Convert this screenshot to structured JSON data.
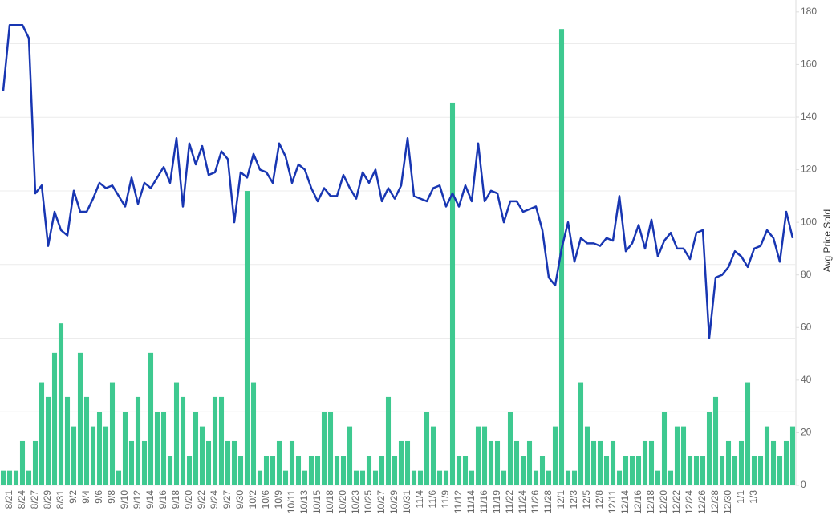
{
  "chart_data": {
    "type": "combo",
    "y2label": "Avg Price Sold",
    "categories": [
      null,
      "8/21",
      null,
      "8/24",
      null,
      "8/27",
      null,
      "8/29",
      null,
      "8/31",
      null,
      "9/2",
      null,
      "9/4",
      null,
      "9/6",
      null,
      "9/8",
      null,
      "9/10",
      null,
      "9/12",
      null,
      "9/14",
      null,
      "9/16",
      null,
      "9/18",
      null,
      "9/20",
      null,
      "9/22",
      null,
      "9/24",
      null,
      "9/27",
      null,
      "9/30",
      null,
      "10/2",
      null,
      "10/6",
      null,
      "10/9",
      null,
      "10/11",
      null,
      "10/13",
      null,
      "10/15",
      null,
      "10/18",
      null,
      "10/20",
      null,
      "10/23",
      null,
      "10/25",
      null,
      "10/27",
      null,
      "10/29",
      null,
      "10/31",
      null,
      "11/4",
      null,
      "11/6",
      null,
      "11/9",
      null,
      "11/12",
      null,
      "11/14",
      null,
      "11/16",
      null,
      "11/19",
      null,
      "11/22",
      null,
      "11/24",
      null,
      "11/26",
      null,
      "11/28",
      null,
      "12/1",
      null,
      "12/3",
      null,
      "12/5",
      null,
      "12/8",
      null,
      "12/11",
      null,
      "12/14",
      null,
      "12/16",
      null,
      "12/18",
      null,
      "12/20",
      null,
      "12/22",
      null,
      "12/24",
      null,
      "12/26",
      null,
      "12/28",
      null,
      "12/30",
      null,
      "1/1",
      null,
      "1/3",
      null,
      null,
      null,
      null,
      null,
      null
    ],
    "series": [
      {
        "type": "bar",
        "color": "#3ec990",
        "values": [
          1,
          1,
          1,
          3,
          1,
          3,
          7,
          6,
          9,
          11,
          6,
          4,
          9,
          6,
          4,
          5,
          4,
          7,
          1,
          5,
          3,
          6,
          3,
          9,
          5,
          5,
          2,
          7,
          6,
          2,
          5,
          4,
          3,
          6,
          6,
          3,
          3,
          2,
          20,
          7,
          1,
          2,
          2,
          3,
          1,
          3,
          2,
          1,
          2,
          2,
          5,
          5,
          2,
          2,
          4,
          1,
          1,
          2,
          1,
          2,
          6,
          2,
          3,
          3,
          1,
          1,
          5,
          4,
          1,
          1,
          26,
          2,
          2,
          1,
          4,
          4,
          3,
          3,
          1,
          5,
          3,
          2,
          3,
          1,
          2,
          1,
          4,
          31,
          1,
          1,
          7,
          4,
          3,
          3,
          2,
          3,
          1,
          2,
          2,
          2,
          3,
          3,
          1,
          5,
          1,
          4,
          4,
          2,
          2,
          2,
          5,
          6,
          2,
          3,
          2,
          3,
          7,
          2,
          2,
          4,
          3,
          2,
          3,
          4
        ]
      },
      {
        "type": "line",
        "axis": "y2",
        "color": "#1836b2",
        "values": [
          150,
          175,
          175,
          175,
          170,
          111,
          114,
          91,
          104,
          97,
          95,
          112,
          104,
          104,
          109,
          115,
          113,
          114,
          110,
          106,
          117,
          107,
          115,
          113,
          117,
          121,
          115,
          132,
          106,
          130,
          122,
          129,
          118,
          119,
          127,
          124,
          100,
          119,
          117,
          126,
          120,
          119,
          115,
          130,
          125,
          115,
          122,
          120,
          113,
          108,
          113,
          110,
          110,
          118,
          113,
          109,
          119,
          115,
          120,
          108,
          113,
          109,
          114,
          132,
          110,
          109,
          108,
          113,
          114,
          106,
          111,
          106,
          114,
          108,
          130,
          108,
          112,
          111,
          100,
          108,
          108,
          104,
          105,
          106,
          97,
          79,
          76,
          90,
          100,
          85,
          94,
          92,
          92,
          91,
          94,
          93,
          110,
          89,
          92,
          99,
          90,
          101,
          87,
          93,
          96,
          90,
          90,
          86,
          96,
          97,
          56,
          79,
          80,
          83,
          89,
          87,
          83,
          90,
          91,
          97,
          94,
          85,
          104,
          94
        ]
      }
    ],
    "ylim": [
      0,
      32.7
    ],
    "yticks": [
      0,
      5,
      10,
      15,
      20,
      25,
      30
    ],
    "yaxis_visible": false,
    "y2lim": [
      0,
      183
    ],
    "y2ticks": [
      0,
      20,
      40,
      60,
      80,
      100,
      120,
      140,
      160,
      180
    ],
    "grid": true
  }
}
